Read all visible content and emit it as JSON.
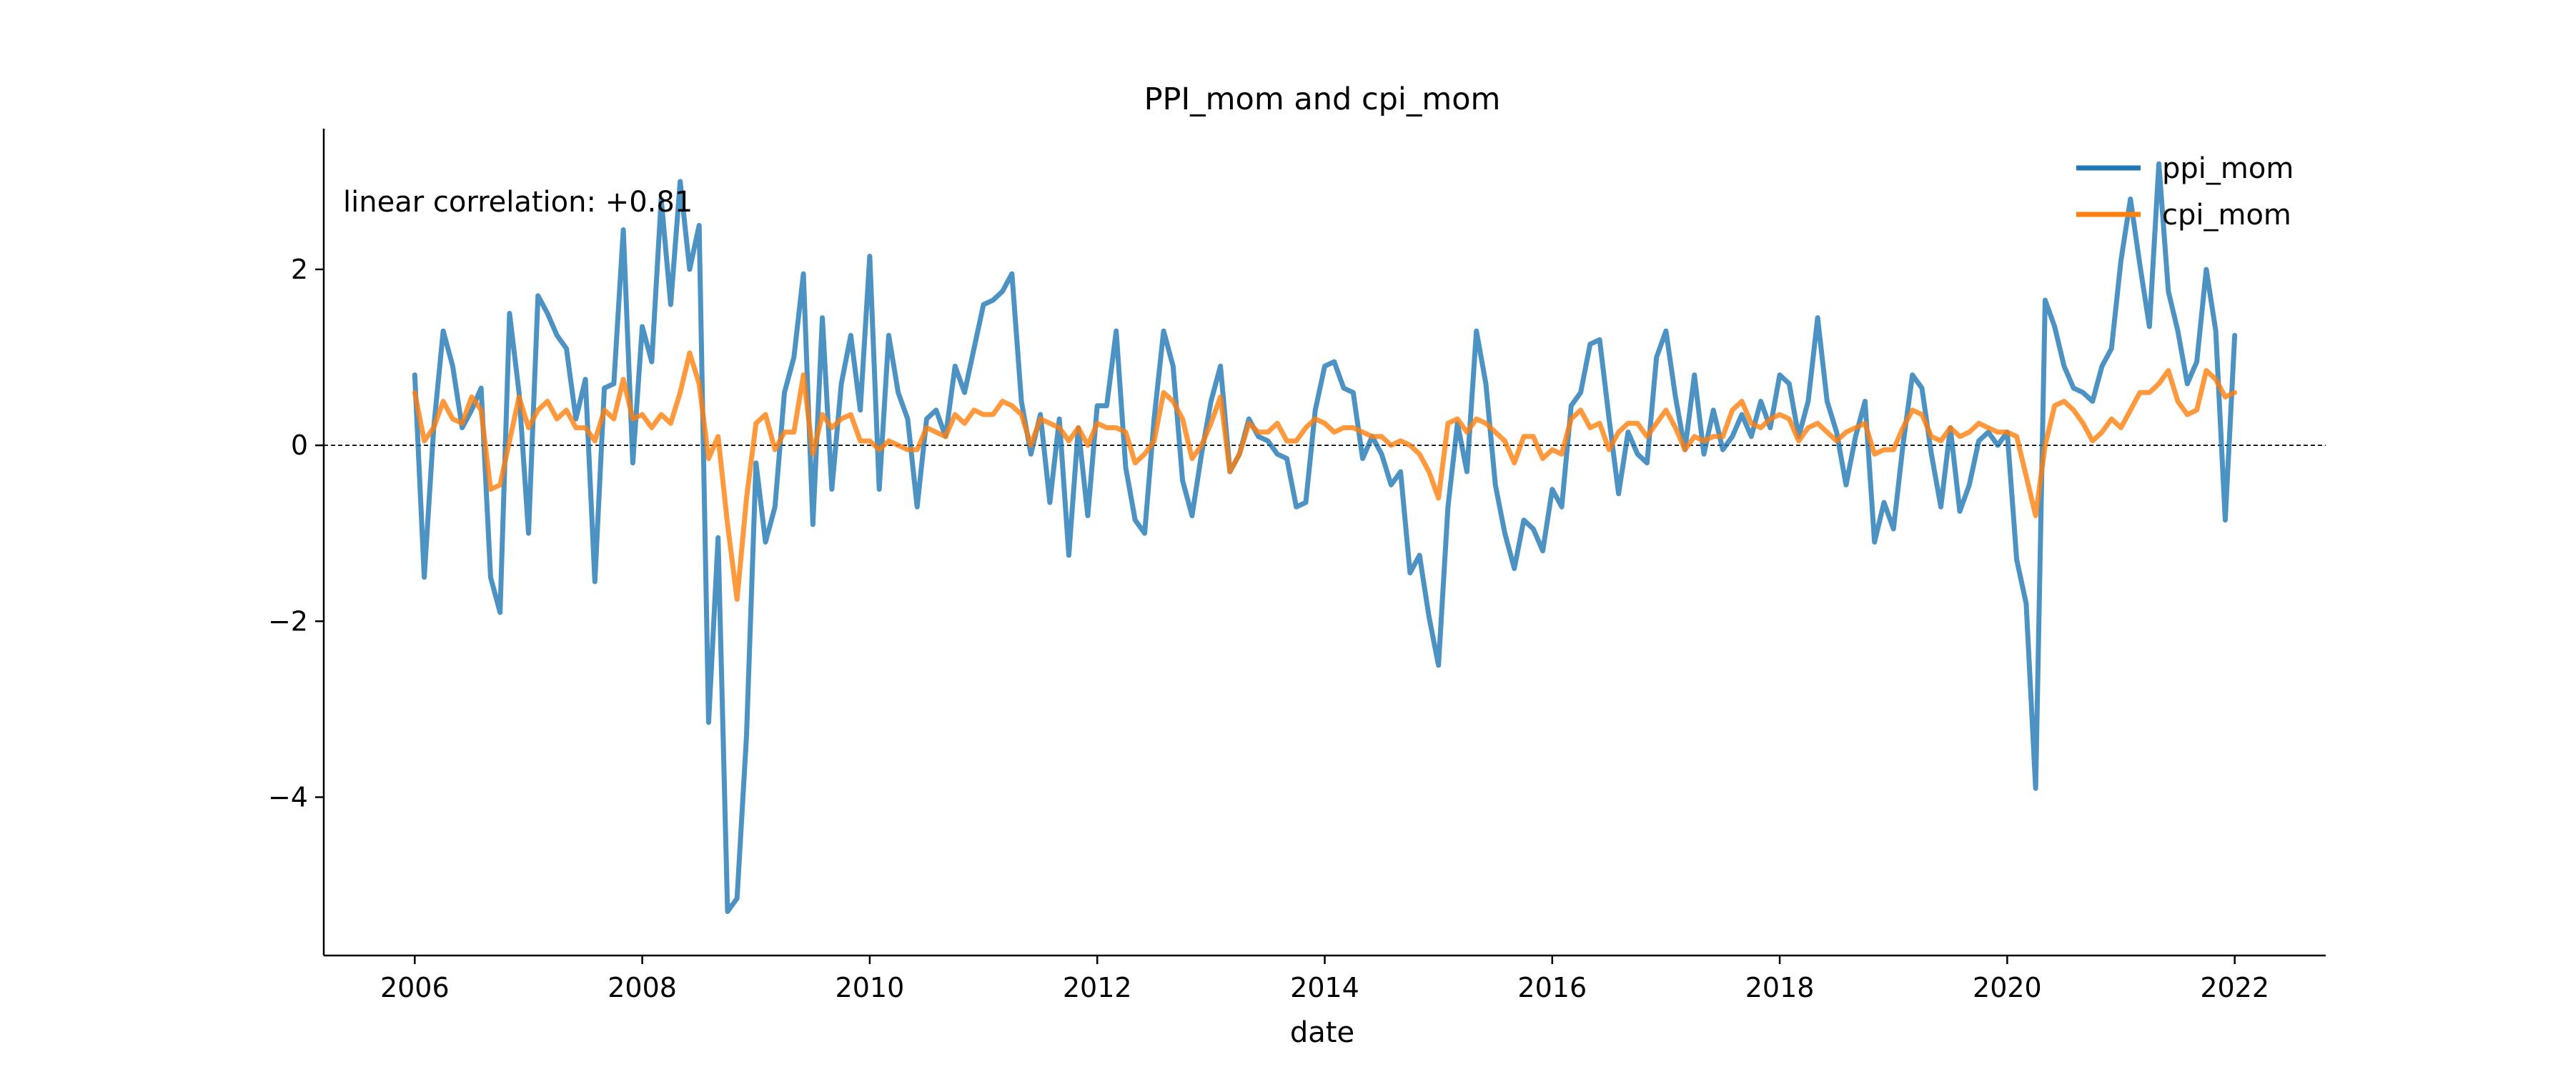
{
  "chart_data": {
    "type": "line",
    "title": "PPI_mom and cpi_mom",
    "xlabel": "date",
    "ylabel": "",
    "annotation": "linear correlation: +0.81",
    "legend_position": "top-right",
    "grid": false,
    "zero_line": true,
    "xlim": [
      2005.2,
      2022.8
    ],
    "ylim": [
      -5.8,
      3.6
    ],
    "x_ticks": [
      2006,
      2008,
      2010,
      2012,
      2014,
      2016,
      2018,
      2020,
      2022
    ],
    "x_tick_labels": [
      "2006",
      "2008",
      "2010",
      "2012",
      "2014",
      "2016",
      "2018",
      "2020",
      "2022"
    ],
    "y_ticks": [
      -4,
      -2,
      0,
      2
    ],
    "y_tick_labels": [
      "−4",
      "−2",
      "0",
      "2"
    ],
    "series": [
      {
        "name": "ppi_mom",
        "color": "#1f77b4",
        "x_start": 2006.0,
        "x_step_months": 1,
        "values": [
          0.8,
          -1.5,
          0.2,
          1.3,
          0.9,
          0.2,
          0.4,
          0.65,
          -1.5,
          -1.9,
          1.5,
          0.6,
          -1.0,
          1.7,
          1.5,
          1.25,
          1.1,
          0.3,
          0.75,
          -1.55,
          0.65,
          0.7,
          2.45,
          -0.2,
          1.35,
          0.95,
          2.8,
          1.6,
          3.0,
          2.0,
          2.5,
          -3.15,
          -1.05,
          -5.3,
          -5.15,
          -3.3,
          -0.2,
          -1.1,
          -0.7,
          0.6,
          1.0,
          1.95,
          -0.9,
          1.45,
          -0.5,
          0.7,
          1.25,
          0.4,
          2.15,
          -0.5,
          1.25,
          0.6,
          0.3,
          -0.7,
          0.3,
          0.4,
          0.1,
          0.9,
          0.6,
          1.1,
          1.6,
          1.65,
          1.75,
          1.95,
          0.5,
          -0.1,
          0.35,
          -0.65,
          0.3,
          -1.25,
          0.2,
          -0.8,
          0.45,
          0.45,
          1.3,
          -0.25,
          -0.85,
          -1.0,
          0.3,
          1.3,
          0.9,
          -0.4,
          -0.8,
          -0.1,
          0.5,
          0.9,
          -0.3,
          -0.1,
          0.3,
          0.1,
          0.05,
          -0.1,
          -0.15,
          -0.7,
          -0.65,
          0.4,
          0.9,
          0.95,
          0.65,
          0.6,
          -0.15,
          0.1,
          -0.1,
          -0.45,
          -0.3,
          -1.45,
          -1.25,
          -1.95,
          -2.5,
          -0.7,
          0.25,
          -0.3,
          1.3,
          0.7,
          -0.45,
          -1.0,
          -1.4,
          -0.85,
          -0.95,
          -1.2,
          -0.5,
          -0.7,
          0.45,
          0.6,
          1.15,
          1.2,
          0.3,
          -0.55,
          0.15,
          -0.1,
          -0.2,
          1.0,
          1.3,
          0.55,
          -0.05,
          0.8,
          -0.1,
          0.4,
          -0.05,
          0.1,
          0.35,
          0.1,
          0.5,
          0.2,
          0.8,
          0.7,
          0.1,
          0.5,
          1.45,
          0.5,
          0.15,
          -0.45,
          0.1,
          0.5,
          -1.1,
          -0.65,
          -0.95,
          0.0,
          0.8,
          0.65,
          -0.1,
          -0.7,
          0.2,
          -0.75,
          -0.45,
          0.05,
          0.15,
          0.0,
          0.15,
          -1.3,
          -1.8,
          -3.9,
          1.65,
          1.35,
          0.9,
          0.65,
          0.6,
          0.5,
          0.9,
          1.1,
          2.1,
          2.8,
          2.05,
          1.35,
          3.2,
          1.75,
          1.3,
          0.7,
          0.95,
          2.0,
          1.3,
          -0.85,
          1.25
        ]
      },
      {
        "name": "cpi_mom",
        "color": "#ff7f0e",
        "x_start": 2006.0,
        "x_step_months": 1,
        "values": [
          0.6,
          0.05,
          0.2,
          0.5,
          0.3,
          0.25,
          0.55,
          0.4,
          -0.5,
          -0.45,
          0.05,
          0.55,
          0.2,
          0.4,
          0.5,
          0.3,
          0.4,
          0.2,
          0.2,
          0.05,
          0.4,
          0.3,
          0.75,
          0.3,
          0.35,
          0.2,
          0.35,
          0.25,
          0.6,
          1.05,
          0.7,
          -0.15,
          0.1,
          -0.9,
          -1.75,
          -0.6,
          0.25,
          0.35,
          -0.05,
          0.15,
          0.15,
          0.8,
          -0.1,
          0.35,
          0.2,
          0.3,
          0.35,
          0.05,
          0.05,
          -0.05,
          0.05,
          0.0,
          -0.05,
          -0.05,
          0.2,
          0.15,
          0.1,
          0.35,
          0.25,
          0.4,
          0.35,
          0.35,
          0.5,
          0.45,
          0.35,
          0.0,
          0.3,
          0.25,
          0.2,
          0.05,
          0.2,
          0.0,
          0.25,
          0.2,
          0.2,
          0.15,
          -0.2,
          -0.1,
          0.05,
          0.6,
          0.5,
          0.3,
          -0.15,
          0.0,
          0.25,
          0.55,
          -0.3,
          -0.1,
          0.25,
          0.15,
          0.15,
          0.25,
          0.05,
          0.05,
          0.2,
          0.3,
          0.25,
          0.15,
          0.2,
          0.2,
          0.15,
          0.1,
          0.1,
          0.0,
          0.05,
          0.0,
          -0.1,
          -0.3,
          -0.6,
          0.25,
          0.3,
          0.15,
          0.3,
          0.25,
          0.15,
          0.05,
          -0.2,
          0.1,
          0.1,
          -0.15,
          -0.05,
          -0.1,
          0.3,
          0.4,
          0.2,
          0.25,
          -0.05,
          0.15,
          0.25,
          0.25,
          0.1,
          0.25,
          0.4,
          0.2,
          -0.05,
          0.1,
          0.05,
          0.1,
          0.1,
          0.4,
          0.5,
          0.25,
          0.2,
          0.3,
          0.35,
          0.3,
          0.05,
          0.2,
          0.25,
          0.15,
          0.05,
          0.15,
          0.2,
          0.25,
          -0.1,
          -0.05,
          -0.05,
          0.2,
          0.4,
          0.35,
          0.1,
          0.05,
          0.2,
          0.1,
          0.15,
          0.25,
          0.2,
          0.15,
          0.15,
          0.1,
          -0.35,
          -0.8,
          0.0,
          0.45,
          0.5,
          0.4,
          0.25,
          0.05,
          0.15,
          0.3,
          0.2,
          0.4,
          0.6,
          0.6,
          0.7,
          0.85,
          0.5,
          0.35,
          0.4,
          0.85,
          0.75,
          0.55,
          0.6
        ]
      }
    ]
  }
}
